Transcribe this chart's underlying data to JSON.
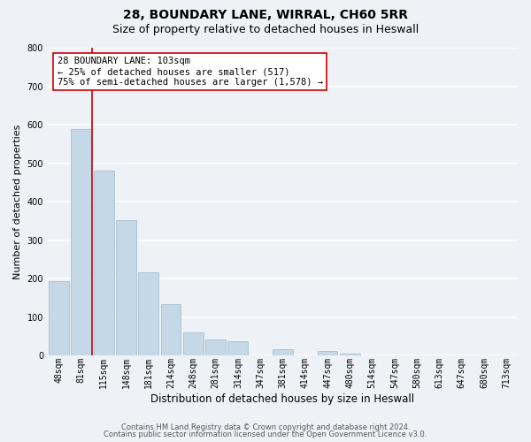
{
  "title1": "28, BOUNDARY LANE, WIRRAL, CH60 5RR",
  "title2": "Size of property relative to detached houses in Heswall",
  "xlabel": "Distribution of detached houses by size in Heswall",
  "ylabel": "Number of detached properties",
  "categories": [
    "48sqm",
    "81sqm",
    "115sqm",
    "148sqm",
    "181sqm",
    "214sqm",
    "248sqm",
    "281sqm",
    "314sqm",
    "347sqm",
    "381sqm",
    "414sqm",
    "447sqm",
    "480sqm",
    "514sqm",
    "547sqm",
    "580sqm",
    "613sqm",
    "647sqm",
    "680sqm",
    "713sqm"
  ],
  "values": [
    193,
    588,
    480,
    353,
    216,
    133,
    60,
    43,
    37,
    0,
    16,
    0,
    13,
    5,
    0,
    0,
    0,
    0,
    0,
    0,
    0
  ],
  "bar_color": "#c5d8e8",
  "bar_edge_color": "#9ab8cc",
  "property_line_color": "#cc0000",
  "property_line_x": 1.5,
  "ylim": [
    0,
    800
  ],
  "yticks": [
    0,
    100,
    200,
    300,
    400,
    500,
    600,
    700,
    800
  ],
  "annotation_title": "28 BOUNDARY LANE: 103sqm",
  "annotation_line1": "← 25% of detached houses are smaller (517)",
  "annotation_line2": "75% of semi-detached houses are larger (1,578) →",
  "footnote1": "Contains HM Land Registry data © Crown copyright and database right 2024.",
  "footnote2": "Contains public sector information licensed under the Open Government Licence v3.0.",
  "background_color": "#eef2f7",
  "grid_color": "#ffffff",
  "title1_fontsize": 10,
  "title2_fontsize": 9,
  "ylabel_fontsize": 8,
  "xlabel_fontsize": 8.5,
  "annotation_fontsize": 7.5,
  "footnote_fontsize": 6,
  "tick_fontsize": 7
}
